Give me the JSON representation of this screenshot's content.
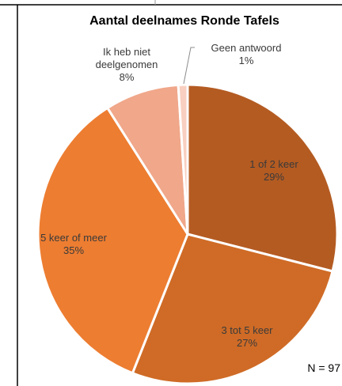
{
  "chart_data": {
    "type": "pie",
    "title": "Aantal deelnames Ronde Tafels",
    "footnote": "N = 97",
    "slices": [
      {
        "label": "1 of 2 keer",
        "value": 29,
        "display": "29%",
        "color": "#b45b22"
      },
      {
        "label": "3 tot 5 keer",
        "value": 27,
        "display": "27%",
        "color": "#cf6b26"
      },
      {
        "label": "5 keer of meer",
        "value": 35,
        "display": "35%",
        "color": "#ed7d31"
      },
      {
        "label": "Ik heb niet deelgenomen",
        "value": 8,
        "display": "8%",
        "color": "#f0a78a"
      },
      {
        "label": "Geen antwoord",
        "value": 1,
        "display": "1%",
        "color": "#f8cfc0"
      }
    ]
  }
}
